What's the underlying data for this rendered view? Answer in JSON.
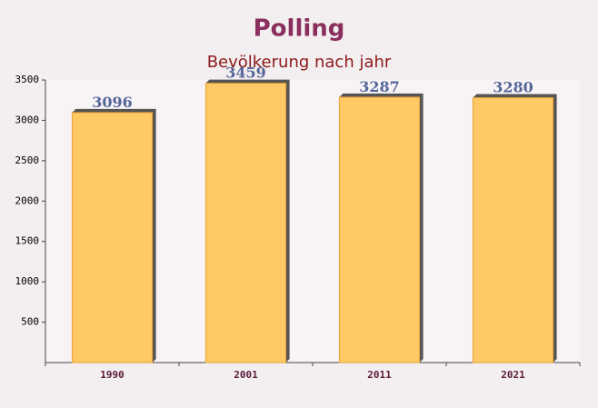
{
  "chart_data": {
    "type": "bar",
    "title": "Polling",
    "subtitle": "Bevölkerung nach jahr",
    "categories": [
      "1990",
      "2001",
      "2011",
      "2021"
    ],
    "values": [
      3096,
      3459,
      3287,
      3280
    ],
    "color": "#ffc965",
    "ylim": [
      0,
      3500
    ],
    "yticks": [
      500,
      1000,
      1500,
      2000,
      2500,
      3000,
      3500
    ]
  }
}
